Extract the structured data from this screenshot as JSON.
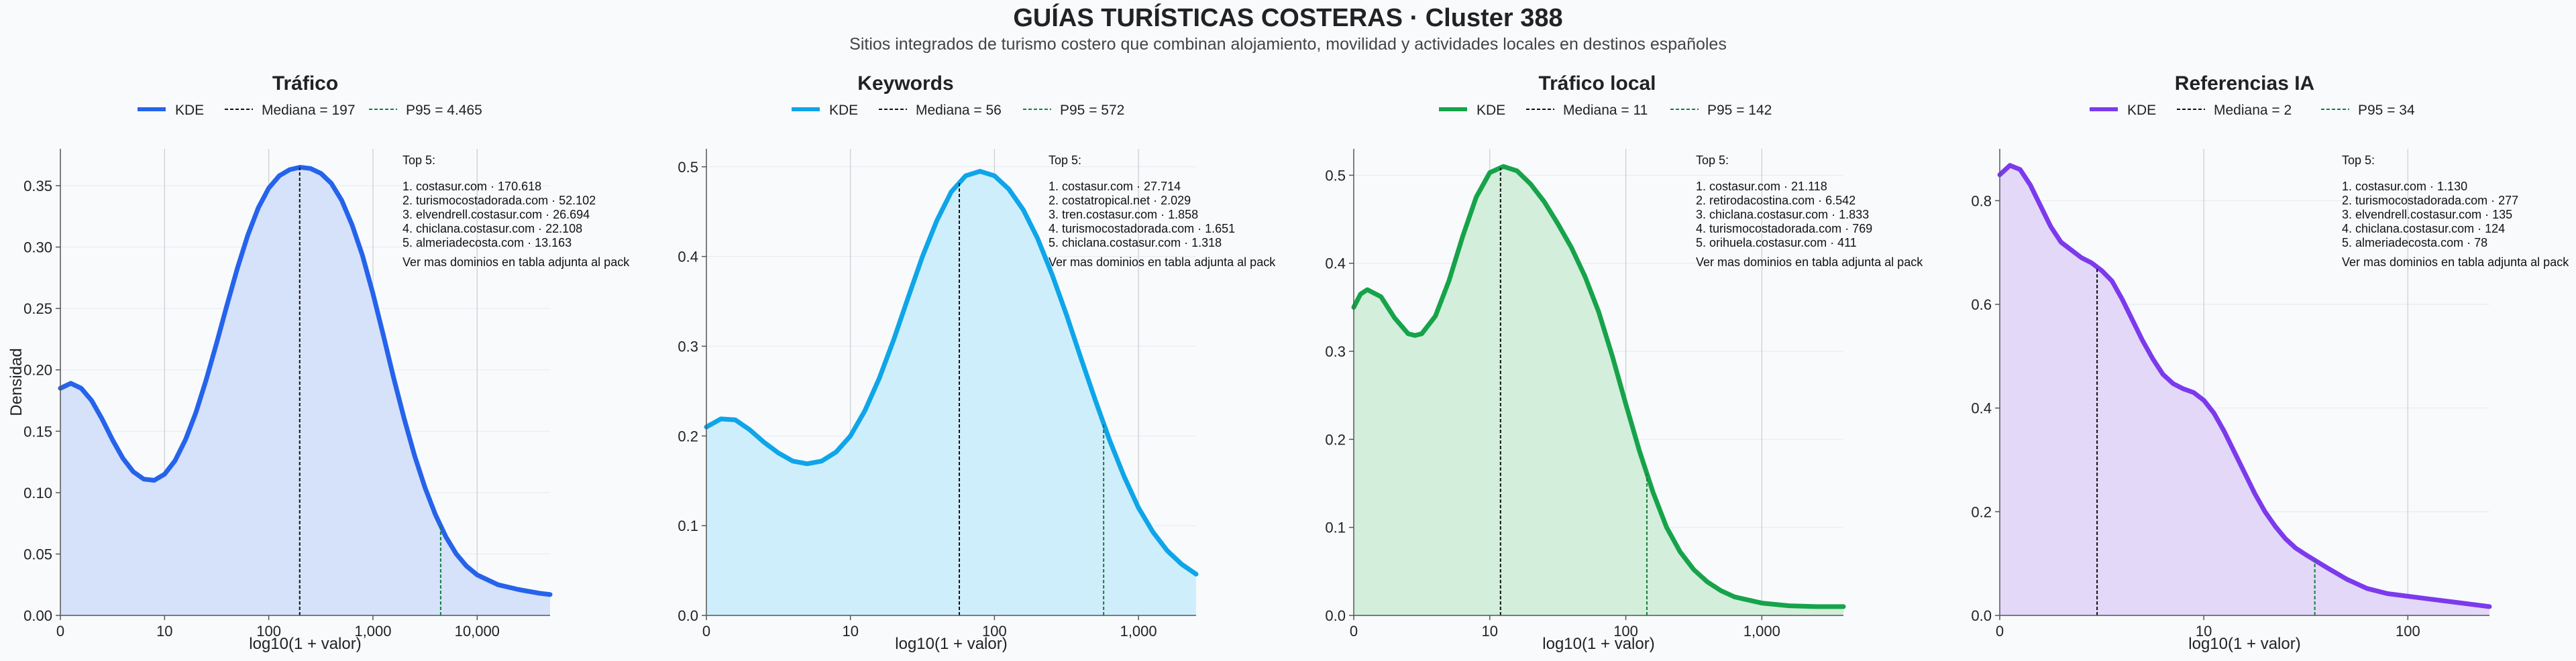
{
  "page": {
    "title": "GUÍAS TURÍSTICAS COSTERAS · Cluster 388",
    "subtitle": "Sitios integrados de turismo costero que combinan alojamiento, movilidad y actividades locales en destinos españoles"
  },
  "chart_data": [
    {
      "type": "area",
      "title": "Tráfico",
      "xlabel": "log10(1 + valor)",
      "ylabel": "Densidad",
      "color": "#2563eb",
      "fill": "#d6e1fa",
      "xlim": [
        0,
        4.7
      ],
      "ylim": [
        0,
        0.38
      ],
      "yticks": [
        0,
        0.05,
        0.1,
        0.15,
        0.2,
        0.25,
        0.3,
        0.35
      ],
      "ytick_labels": [
        "0.00",
        "0.05",
        "0.10",
        "0.15",
        "0.20",
        "0.25",
        "0.30",
        "0.35"
      ],
      "xticks": [
        0,
        1,
        2,
        3,
        4
      ],
      "xtick_labels": [
        "0",
        "10",
        "100",
        "1,000",
        "10,000"
      ],
      "legend": {
        "kde": "KDE",
        "median": "Mediana = 197",
        "p95": "P95 = 4.465"
      },
      "median_x": 2.297,
      "p95_x": 3.65,
      "curve": [
        [
          0,
          0.185
        ],
        [
          0.1,
          0.189
        ],
        [
          0.2,
          0.185
        ],
        [
          0.3,
          0.175
        ],
        [
          0.4,
          0.16
        ],
        [
          0.5,
          0.143
        ],
        [
          0.6,
          0.128
        ],
        [
          0.7,
          0.117
        ],
        [
          0.8,
          0.111
        ],
        [
          0.9,
          0.11
        ],
        [
          1.0,
          0.115
        ],
        [
          1.1,
          0.126
        ],
        [
          1.2,
          0.143
        ],
        [
          1.3,
          0.165
        ],
        [
          1.4,
          0.192
        ],
        [
          1.5,
          0.222
        ],
        [
          1.6,
          0.253
        ],
        [
          1.7,
          0.283
        ],
        [
          1.8,
          0.31
        ],
        [
          1.9,
          0.332
        ],
        [
          2.0,
          0.348
        ],
        [
          2.1,
          0.358
        ],
        [
          2.2,
          0.363
        ],
        [
          2.3,
          0.365
        ],
        [
          2.4,
          0.364
        ],
        [
          2.5,
          0.36
        ],
        [
          2.6,
          0.352
        ],
        [
          2.7,
          0.338
        ],
        [
          2.8,
          0.318
        ],
        [
          2.9,
          0.293
        ],
        [
          3.0,
          0.262
        ],
        [
          3.1,
          0.228
        ],
        [
          3.2,
          0.193
        ],
        [
          3.3,
          0.16
        ],
        [
          3.4,
          0.13
        ],
        [
          3.5,
          0.104
        ],
        [
          3.6,
          0.082
        ],
        [
          3.7,
          0.064
        ],
        [
          3.8,
          0.05
        ],
        [
          3.9,
          0.04
        ],
        [
          4.0,
          0.033
        ],
        [
          4.2,
          0.025
        ],
        [
          4.4,
          0.021
        ],
        [
          4.6,
          0.018
        ],
        [
          4.7,
          0.017
        ]
      ],
      "top5_title": "Top 5:",
      "top5": [
        "1. costasur.com · 170.618",
        "2. turismocostadorada.com · 52.102",
        "3. elvendrell.costasur.com · 26.694",
        "4. chiclana.costasur.com · 22.108",
        "5. almeriadecosta.com · 13.163"
      ],
      "note": "Ver mas dominios en tabla adjunta al pack"
    },
    {
      "type": "area",
      "title": "Keywords",
      "xlabel": "log10(1 + valor)",
      "ylabel": "",
      "color": "#0ea5e9",
      "fill": "#cfeefb",
      "xlim": [
        0,
        3.4
      ],
      "ylim": [
        0,
        0.52
      ],
      "yticks": [
        0,
        0.1,
        0.2,
        0.3,
        0.4,
        0.5
      ],
      "ytick_labels": [
        "0.0",
        "0.1",
        "0.2",
        "0.3",
        "0.4",
        "0.5"
      ],
      "xticks": [
        0,
        1,
        2,
        3
      ],
      "xtick_labels": [
        "0",
        "10",
        "100",
        "1,000"
      ],
      "legend": {
        "kde": "KDE",
        "median": "Mediana = 56",
        "p95": "P95 = 572"
      },
      "median_x": 1.756,
      "p95_x": 2.758,
      "curve": [
        [
          0,
          0.21
        ],
        [
          0.1,
          0.219
        ],
        [
          0.2,
          0.218
        ],
        [
          0.3,
          0.207
        ],
        [
          0.4,
          0.193
        ],
        [
          0.5,
          0.181
        ],
        [
          0.6,
          0.172
        ],
        [
          0.7,
          0.169
        ],
        [
          0.8,
          0.172
        ],
        [
          0.9,
          0.182
        ],
        [
          1.0,
          0.2
        ],
        [
          1.1,
          0.228
        ],
        [
          1.2,
          0.264
        ],
        [
          1.3,
          0.307
        ],
        [
          1.4,
          0.354
        ],
        [
          1.5,
          0.4
        ],
        [
          1.6,
          0.44
        ],
        [
          1.7,
          0.472
        ],
        [
          1.8,
          0.49
        ],
        [
          1.9,
          0.495
        ],
        [
          2.0,
          0.49
        ],
        [
          2.1,
          0.475
        ],
        [
          2.2,
          0.452
        ],
        [
          2.3,
          0.42
        ],
        [
          2.4,
          0.38
        ],
        [
          2.5,
          0.335
        ],
        [
          2.6,
          0.287
        ],
        [
          2.7,
          0.24
        ],
        [
          2.8,
          0.195
        ],
        [
          2.9,
          0.155
        ],
        [
          3.0,
          0.12
        ],
        [
          3.1,
          0.093
        ],
        [
          3.2,
          0.072
        ],
        [
          3.3,
          0.057
        ],
        [
          3.4,
          0.046
        ]
      ],
      "top5_title": "Top 5:",
      "top5": [
        "1. costasur.com · 27.714",
        "2. costatropical.net · 2.029",
        "3. tren.costasur.com · 1.858",
        "4. turismocostadorada.com · 1.651",
        "5. chiclana.costasur.com · 1.318"
      ],
      "note": "Ver mas dominios en tabla adjunta al pack"
    },
    {
      "type": "area",
      "title": "Tráfico local",
      "xlabel": "log10(1 + valor)",
      "ylabel": "",
      "color": "#16a34a",
      "fill": "#d3eedb",
      "xlim": [
        0,
        3.6
      ],
      "ylim": [
        0,
        0.53
      ],
      "yticks": [
        0,
        0.1,
        0.2,
        0.3,
        0.4,
        0.5
      ],
      "ytick_labels": [
        "0.0",
        "0.1",
        "0.2",
        "0.3",
        "0.4",
        "0.5"
      ],
      "xticks": [
        0,
        1,
        2,
        3
      ],
      "xtick_labels": [
        "0",
        "10",
        "100",
        "1,000"
      ],
      "legend": {
        "kde": "KDE",
        "median": "Mediana = 11",
        "p95": "P95 = 142"
      },
      "median_x": 1.079,
      "p95_x": 2.155,
      "curve": [
        [
          0,
          0.35
        ],
        [
          0.05,
          0.365
        ],
        [
          0.1,
          0.37
        ],
        [
          0.2,
          0.362
        ],
        [
          0.3,
          0.338
        ],
        [
          0.4,
          0.32
        ],
        [
          0.45,
          0.318
        ],
        [
          0.5,
          0.32
        ],
        [
          0.6,
          0.34
        ],
        [
          0.7,
          0.38
        ],
        [
          0.8,
          0.43
        ],
        [
          0.9,
          0.475
        ],
        [
          1.0,
          0.503
        ],
        [
          1.1,
          0.51
        ],
        [
          1.2,
          0.505
        ],
        [
          1.3,
          0.49
        ],
        [
          1.4,
          0.47
        ],
        [
          1.5,
          0.445
        ],
        [
          1.6,
          0.418
        ],
        [
          1.7,
          0.385
        ],
        [
          1.8,
          0.345
        ],
        [
          1.9,
          0.295
        ],
        [
          2.0,
          0.24
        ],
        [
          2.1,
          0.187
        ],
        [
          2.2,
          0.14
        ],
        [
          2.3,
          0.1
        ],
        [
          2.4,
          0.072
        ],
        [
          2.5,
          0.052
        ],
        [
          2.6,
          0.038
        ],
        [
          2.7,
          0.028
        ],
        [
          2.8,
          0.021
        ],
        [
          3.0,
          0.014
        ],
        [
          3.2,
          0.011
        ],
        [
          3.4,
          0.01
        ],
        [
          3.6,
          0.01
        ]
      ],
      "top5_title": "Top 5:",
      "top5": [
        "1. costasur.com · 21.118",
        "2. retirodacostina.com · 6.542",
        "3. chiclana.costasur.com · 1.833",
        "4. turismocostadorada.com · 769",
        "5. orihuela.costasur.com · 411"
      ],
      "note": "Ver mas dominios en tabla adjunta al pack"
    },
    {
      "type": "area",
      "title": "Referencias IA",
      "xlabel": "log10(1 + valor)",
      "ylabel": "",
      "color": "#7c3aed",
      "fill": "#e3d8f8",
      "xlim": [
        0,
        2.4
      ],
      "ylim": [
        0,
        0.9
      ],
      "yticks": [
        0,
        0.2,
        0.4,
        0.6,
        0.8
      ],
      "ytick_labels": [
        "0.0",
        "0.2",
        "0.4",
        "0.6",
        "0.8"
      ],
      "xticks": [
        0,
        1,
        2
      ],
      "xtick_labels": [
        "0",
        "10",
        "100"
      ],
      "legend": {
        "kde": "KDE",
        "median": "Mediana = 2",
        "p95": "P95 = 34"
      },
      "median_x": 0.477,
      "p95_x": 1.544,
      "curve": [
        [
          0,
          0.85
        ],
        [
          0.05,
          0.868
        ],
        [
          0.1,
          0.86
        ],
        [
          0.15,
          0.83
        ],
        [
          0.2,
          0.79
        ],
        [
          0.25,
          0.75
        ],
        [
          0.3,
          0.72
        ],
        [
          0.35,
          0.705
        ],
        [
          0.4,
          0.69
        ],
        [
          0.45,
          0.68
        ],
        [
          0.5,
          0.665
        ],
        [
          0.55,
          0.645
        ],
        [
          0.6,
          0.61
        ],
        [
          0.65,
          0.57
        ],
        [
          0.7,
          0.53
        ],
        [
          0.75,
          0.495
        ],
        [
          0.8,
          0.465
        ],
        [
          0.85,
          0.447
        ],
        [
          0.9,
          0.437
        ],
        [
          0.95,
          0.43
        ],
        [
          1.0,
          0.415
        ],
        [
          1.05,
          0.39
        ],
        [
          1.1,
          0.355
        ],
        [
          1.15,
          0.315
        ],
        [
          1.2,
          0.275
        ],
        [
          1.25,
          0.235
        ],
        [
          1.3,
          0.2
        ],
        [
          1.35,
          0.172
        ],
        [
          1.4,
          0.148
        ],
        [
          1.45,
          0.13
        ],
        [
          1.5,
          0.117
        ],
        [
          1.55,
          0.105
        ],
        [
          1.6,
          0.093
        ],
        [
          1.7,
          0.07
        ],
        [
          1.8,
          0.052
        ],
        [
          1.9,
          0.042
        ],
        [
          2.0,
          0.037
        ],
        [
          2.1,
          0.032
        ],
        [
          2.2,
          0.027
        ],
        [
          2.3,
          0.022
        ],
        [
          2.4,
          0.017
        ]
      ],
      "top5_title": "Top 5:",
      "top5": [
        "1. costasur.com · 1.130",
        "2. turismocostadorada.com · 277",
        "3. elvendrell.costasur.com · 135",
        "4. chiclana.costasur.com · 124",
        "5. almeriadecosta.com · 78"
      ],
      "note": "Ver mas dominios en tabla adjunta al pack"
    }
  ]
}
